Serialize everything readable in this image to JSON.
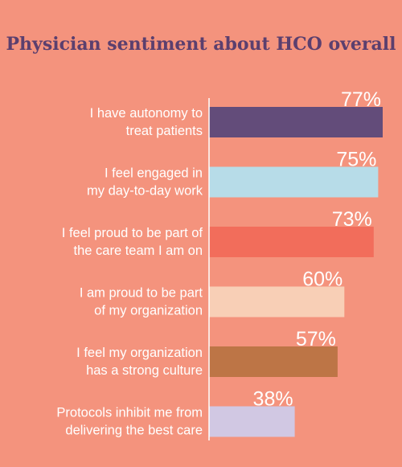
{
  "chart_data": {
    "type": "bar",
    "orientation": "horizontal",
    "title": "Physician sentiment about HCO overall",
    "categories": [
      [
        "I have autonomy to",
        "treat patients"
      ],
      [
        "I feel engaged in",
        "my day-to-day work"
      ],
      [
        "I feel proud to be part of",
        "the care team I am on"
      ],
      [
        "I am proud to be part",
        "of my organization"
      ],
      [
        "I feel my organization",
        "has a strong culture"
      ],
      [
        "Protocols inhibit me from",
        "delivering the best care"
      ]
    ],
    "values": [
      77,
      75,
      73,
      60,
      57,
      38
    ],
    "value_labels": [
      "77%",
      "75%",
      "73%",
      "60%",
      "57%",
      "38%"
    ],
    "bar_colors": [
      "#634c7a",
      "#b7dce8",
      "#f26d5b",
      "#f8cfb6",
      "#bd7546",
      "#d1c8e3"
    ],
    "xlim": [
      0,
      77
    ],
    "grid": false,
    "legend": "none"
  },
  "colors": {
    "background": "#f4937d",
    "title": "#5b3f6e",
    "text": "#ffffff",
    "axis": "#ffffff"
  }
}
